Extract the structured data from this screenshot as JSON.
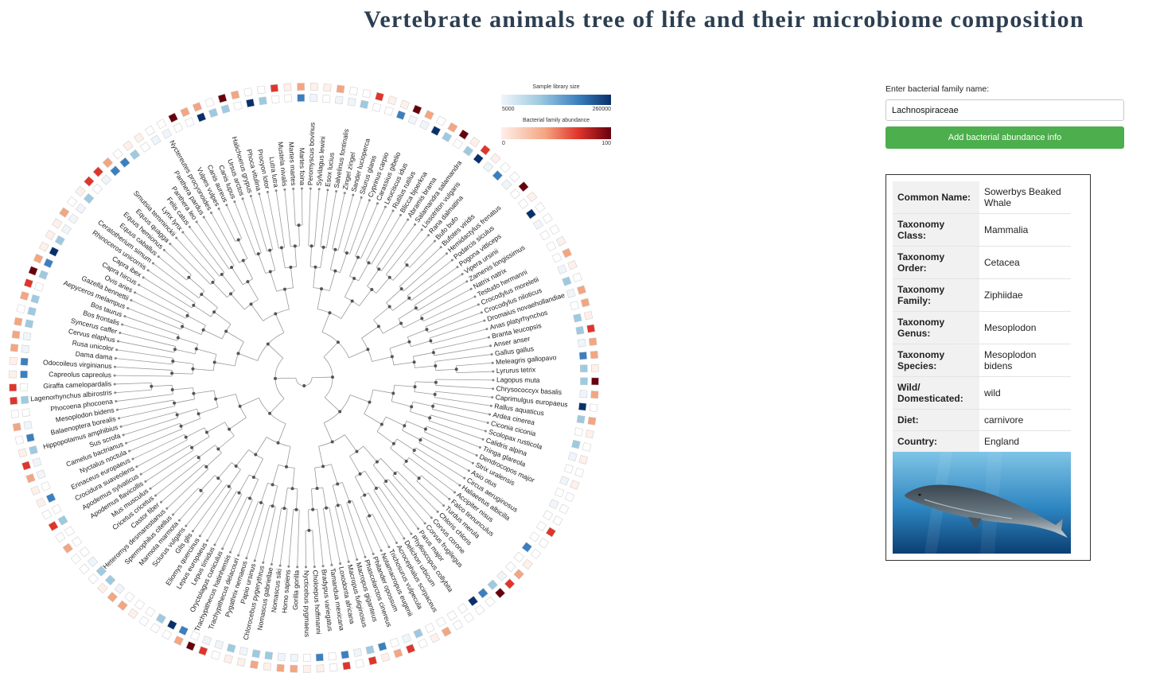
{
  "page": {
    "title": "Vertebrate animals tree of life and their microbiome composition"
  },
  "legend": {
    "library_title": "Sample library size",
    "library_min": "5000",
    "library_max": "260000",
    "library_colors": [
      "#f0f5fb",
      "#9ecae1",
      "#3b7fbf",
      "#08306b"
    ],
    "abundance_title": "Bacterial family abundance",
    "abundance_min": "0",
    "abundance_max": "100",
    "abundance_colors": [
      "#fff0ea",
      "#f4a582",
      "#e0352b",
      "#67000d"
    ]
  },
  "search": {
    "label": "Enter bacterial family name:",
    "value": "Lachnospiraceae",
    "placeholder": "",
    "button_label": "Add bacterial abundance info"
  },
  "info_card": {
    "rows": [
      {
        "key": "Common Name:",
        "value": "Sowerbys Beaked Whale"
      },
      {
        "key": "Taxonomy Class:",
        "value": "Mammalia"
      },
      {
        "key": "Taxonomy Order:",
        "value": "Cetacea"
      },
      {
        "key": "Taxonomy Family:",
        "value": "Ziphiidae"
      },
      {
        "key": "Taxonomy Genus:",
        "value": "Mesoplodon"
      },
      {
        "key": "Taxonomy Species:",
        "value": "Mesoplodon bidens"
      },
      {
        "key": "Wild/ Domesticated:",
        "value": "wild"
      },
      {
        "key": "Diet:",
        "value": "carnivore"
      },
      {
        "key": "Country:",
        "value": "England"
      }
    ],
    "image_icon": "beaked-whale-illustration"
  },
  "tree": {
    "colors": {
      "branch": "#9a9a9a",
      "node": "#555555",
      "leaf_dot": "#888888"
    },
    "leaves": [
      "Peromyscus bovinus",
      "Sylvilagus lewini",
      "Esox lucius",
      "Salvelinus fontinalis",
      "Zingel zingel",
      "Sander lucioperca",
      "Silurus glanis",
      "Cyprinus carpio",
      "Carassius gibelio",
      "Leuciscus idus",
      "Rutilus rutilus",
      "Blicca bjoerkna",
      "Abramis brama",
      "Salamandra salamandra",
      "Lissotriton vulgaris",
      "Rana dalmatina",
      "Bufo bufo",
      "Bufotes viridis",
      "Hemidactylus frenatus",
      "Podarcis siculus",
      "Pogona vitticeps",
      "Vipera ursinii",
      "Zamenis longissimus",
      "Natrix natrix",
      "Testudo hermanni",
      "Crocodylus moreletii",
      "Crocodylus niloticus",
      "Dromaius novaehollandiae",
      "Anas platyrhynchos",
      "Branta leucopsis",
      "Anser anser",
      "Gallus gallus",
      "Meleagris gallopavo",
      "Lyrurus tetrix",
      "Lagopus muta",
      "Chrysococcyx basalis",
      "Caprimulgus europaeus",
      "Rallus aquaticus",
      "Ardea cinerea",
      "Ciconia ciconia",
      "Scolopax rusticola",
      "Calidris alpina",
      "Tringa glareola",
      "Dendrocopos major",
      "Strix uralensis",
      "Asio otus",
      "Circus aeruginosus",
      "Haliaeetus albicilla",
      "Accipiter nisus",
      "Falco tinnunculus",
      "Turdus merula",
      "Chloris chloris",
      "Corvus corone",
      "Corvus frugilegus",
      "Parus major",
      "Phylloscopus collybita",
      "Delichon urbicum",
      "Acrocephalus scirpaceus",
      "Trichosurus vulpecula",
      "Notamacropus eugenii",
      "Philander opossum",
      "Phascolarctos cinereus",
      "Macropus giganteus",
      "Macropus fuliginosus",
      "Loxodonta africana",
      "Tamandua mexicana",
      "Bradypus variegatus",
      "Choloepus hoffmanni",
      "Nycticebus pygmaeus",
      "Gorilla gorilla",
      "Homo sapiens",
      "Nomascus siki",
      "Nomascus gabriellae",
      "Chlorocebus pygerythrus",
      "Papio ursinus",
      "Pygathrix nemaeus",
      "Trachypithecus delacouri",
      "Trachypithecus hatinhensis",
      "Oryctolagus cuniculus",
      "Lepus timidus",
      "Lepus europaeus",
      "Eliomys quercinus",
      "Glis glis",
      "Sciurus vulgaris",
      "Marmota marmota",
      "Spermophilus citellus",
      "Heteromys desmarestianus",
      "Castor fiber",
      "Cricetus cricetus",
      "Mus musculus",
      "Apodemus flavicollis",
      "Apodemus sylvaticus",
      "Crocidura suaveolens",
      "Erinaceus europaeus",
      "Nyctalus noctula",
      "Camelus bactrianus",
      "Sus scrofa",
      "Hippopotamus amphibius",
      "Balaenoptera borealis",
      "Mesoplodon bidens",
      "Phocoena phocoena",
      "Lagenorhynchus albirostris",
      "Giraffa camelopardalis",
      "Capreolus capreolus",
      "Odocoileus virginianus",
      "Dama dama",
      "Rusa unicolor",
      "Cervus elaphus",
      "Syncerus caffer",
      "Bos frontalis",
      "Bos taurus",
      "Aepyceros melampus",
      "Gazella bennettii",
      "Ovis aries",
      "Capra hircus",
      "Capra ibex",
      "Rhinoceros unicornis",
      "Ceratotherium simum",
      "Equus caballus",
      "Equus hemionus",
      "Equus quagga",
      "Smutsia temminckii",
      "Lynx lynx",
      "Felis catus",
      "Panthera leo",
      "Panthera pardus",
      "Nyctereutes procyonoides",
      "Vulpes vulpes",
      "Canis aureus",
      "Canis lupus",
      "Ursus arctos",
      "Halichoerus grypus",
      "Phoca vitulina",
      "Procyon lotor",
      "Lutra lutra",
      "Mustela nivalis",
      "Martes martes",
      "Martes foina"
    ]
  }
}
